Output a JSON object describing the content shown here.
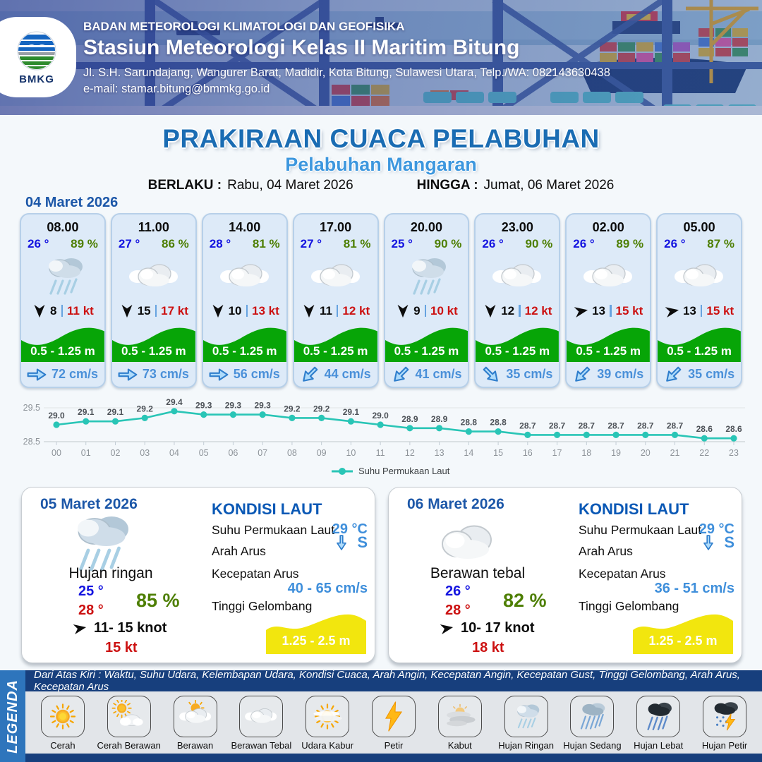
{
  "colors": {
    "accent_blue": "#1a6cb3",
    "light_blue": "#3d97de",
    "temp_blue": "#1414e0",
    "humidity_green": "#4e7f04",
    "gust_red": "#cc1111",
    "wave_green": "#07a507",
    "current_blue": "#4a90d9",
    "chart_teal": "#29c5b6",
    "wave_yellow": "#f2e60e",
    "navy": "#173f7d",
    "legend_strip_blue": "#2e75bc",
    "card_bg": "#ddeaf8"
  },
  "header": {
    "agency": "BADAN METEOROLOGI KLIMATOLOGI DAN GEOFISIKA",
    "station": "Stasiun Meteorologi Kelas II Maritim Bitung",
    "address": "Jl. S.H. Sarundajang, Wangurer Barat, Madidir, Kota Bitung, Sulawesi Utara, Telp./WA: 082143630438",
    "email": "e-mail: stamar.bitung@bmmkg.go.id",
    "logo": "BMKG"
  },
  "title": {
    "main": "PRAKIRAAN CUACA PELABUHAN",
    "subtitle": "Pelabuhan Mangaran",
    "valid_label": "BERLAKU :",
    "valid_value": "Rabu, 04 Maret 2026",
    "until_label": "HINGGA :",
    "until_value": "Jumat, 06 Maret 2026"
  },
  "forecast_date": "04 Maret 2026",
  "hourly": [
    {
      "time": "08.00",
      "temp": "26 °",
      "humidity": "89 %",
      "icon": "hujan-ringan",
      "wind_deg": 90,
      "wind_speed": "8",
      "wind_gust": "11 kt",
      "wave": "0.5 - 1.25 m",
      "current_deg": 0,
      "current": "72 cm/s"
    },
    {
      "time": "11.00",
      "temp": "27 °",
      "humidity": "86 %",
      "icon": "berawan-tebal",
      "wind_deg": 90,
      "wind_speed": "15",
      "wind_gust": "17 kt",
      "wave": "0.5 - 1.25 m",
      "current_deg": 0,
      "current": "73 cm/s"
    },
    {
      "time": "14.00",
      "temp": "28 °",
      "humidity": "81 %",
      "icon": "berawan-tebal",
      "wind_deg": 90,
      "wind_speed": "10",
      "wind_gust": "13 kt",
      "wave": "0.5 - 1.25 m",
      "current_deg": 0,
      "current": "56 cm/s"
    },
    {
      "time": "17.00",
      "temp": "27 °",
      "humidity": "81 %",
      "icon": "berawan-tebal",
      "wind_deg": 90,
      "wind_speed": "11",
      "wind_gust": "12 kt",
      "wave": "0.5 - 1.25 m",
      "current_deg": 135,
      "current": "44 cm/s"
    },
    {
      "time": "20.00",
      "temp": "25 °",
      "humidity": "90 %",
      "icon": "hujan-ringan",
      "wind_deg": 90,
      "wind_speed": "9",
      "wind_gust": "10 kt",
      "wave": "0.5 - 1.25 m",
      "current_deg": 135,
      "current": "41 cm/s"
    },
    {
      "time": "23.00",
      "temp": "26 °",
      "humidity": "90 %",
      "icon": "berawan-tebal",
      "wind_deg": 90,
      "wind_speed": "12",
      "wind_gust": "12 kt",
      "wave": "0.5 - 1.25 m",
      "current_deg": 45,
      "current": "35 cm/s"
    },
    {
      "time": "02.00",
      "temp": "26 °",
      "humidity": "89 %",
      "icon": "berawan-tebal",
      "wind_deg": -10,
      "wind_speed": "13",
      "wind_gust": "15 kt",
      "wave": "0.5 - 1.25 m",
      "current_deg": 135,
      "current": "39 cm/s"
    },
    {
      "time": "05.00",
      "temp": "26 °",
      "humidity": "87 %",
      "icon": "berawan-tebal",
      "wind_deg": -10,
      "wind_speed": "13",
      "wind_gust": "15 kt",
      "wave": "0.5 - 1.25 m",
      "current_deg": 135,
      "current": "35 cm/s"
    }
  ],
  "chart_data": {
    "type": "line",
    "x": [
      "00",
      "01",
      "02",
      "03",
      "04",
      "05",
      "06",
      "07",
      "08",
      "09",
      "10",
      "11",
      "12",
      "13",
      "14",
      "15",
      "16",
      "17",
      "18",
      "19",
      "20",
      "21",
      "22",
      "23"
    ],
    "series": [
      {
        "name": "Suhu Permukaan Laut",
        "values": [
          29.0,
          29.1,
          29.1,
          29.2,
          29.4,
          29.3,
          29.3,
          29.3,
          29.2,
          29.2,
          29.1,
          29.0,
          28.9,
          28.9,
          28.8,
          28.8,
          28.7,
          28.7,
          28.7,
          28.7,
          28.7,
          28.7,
          28.6,
          28.6
        ]
      }
    ],
    "ylim": [
      28.5,
      29.5
    ],
    "yticks": [
      29.5,
      28.5
    ],
    "line_color": "#29c5b6",
    "grid": true,
    "legend_position": "bottom"
  },
  "daily": [
    {
      "date": "05 Maret 2026",
      "icon": "hujan-ringan",
      "condition": "Hujan ringan",
      "temp_min": "25 °",
      "temp_max": "28 °",
      "humidity": "85 %",
      "wind_range": "11- 15 knot",
      "wind_gust": "15 kt",
      "wind_deg": -10,
      "sea": {
        "title": "KONDISI LAUT",
        "sst_label": "Suhu Permukaan Laut",
        "sst_value": "29 °C",
        "dir_label": "Arah Arus",
        "dir_value": "S",
        "dir_deg": 90,
        "speed_label": "Kecepatan Arus",
        "speed_value": "40 - 65 cm/s",
        "wave_label": "Tinggi Gelombang",
        "wave_value": "1.25 - 2.5 m"
      }
    },
    {
      "date": "06 Maret 2026",
      "icon": "berawan-tebal",
      "condition": "Berawan tebal",
      "temp_min": "26 °",
      "temp_max": "28 °",
      "humidity": "82 %",
      "wind_range": "10- 17 knot",
      "wind_gust": "18 kt",
      "wind_deg": -10,
      "sea": {
        "title": "KONDISI LAUT",
        "sst_label": "Suhu Permukaan Laut",
        "sst_value": "29 °C",
        "dir_label": "Arah Arus",
        "dir_value": "S",
        "dir_deg": 90,
        "speed_label": "Kecepatan Arus",
        "speed_value": "36 - 51 cm/s",
        "wave_label": "Tinggi Gelombang",
        "wave_value": "1.25 - 2.5 m"
      }
    }
  ],
  "legend": {
    "title": "LEGENDA",
    "note": "Dari Atas Kiri : Waktu, Suhu Udara, Kelembapan Udara, Kondisi Cuaca, Arah Angin, Kecepatan Angin, Kecepatan Gust, Tinggi Gelombang, Arah Arus, Kecepatan Arus",
    "items": [
      {
        "label": "Cerah",
        "icon": "cerah"
      },
      {
        "label": "Cerah Berawan",
        "icon": "cerah-berawan"
      },
      {
        "label": "Berawan",
        "icon": "berawan"
      },
      {
        "label": "Berawan Tebal",
        "icon": "berawan-tebal"
      },
      {
        "label": "Udara Kabur",
        "icon": "udara-kabur"
      },
      {
        "label": "Petir",
        "icon": "petir"
      },
      {
        "label": "Kabut",
        "icon": "kabut"
      },
      {
        "label": "Hujan Ringan",
        "icon": "hujan-ringan"
      },
      {
        "label": "Hujan Sedang",
        "icon": "hujan-sedang"
      },
      {
        "label": "Hujan Lebat",
        "icon": "hujan-lebat"
      },
      {
        "label": "Hujan Petir",
        "icon": "hujan-petir"
      }
    ]
  }
}
